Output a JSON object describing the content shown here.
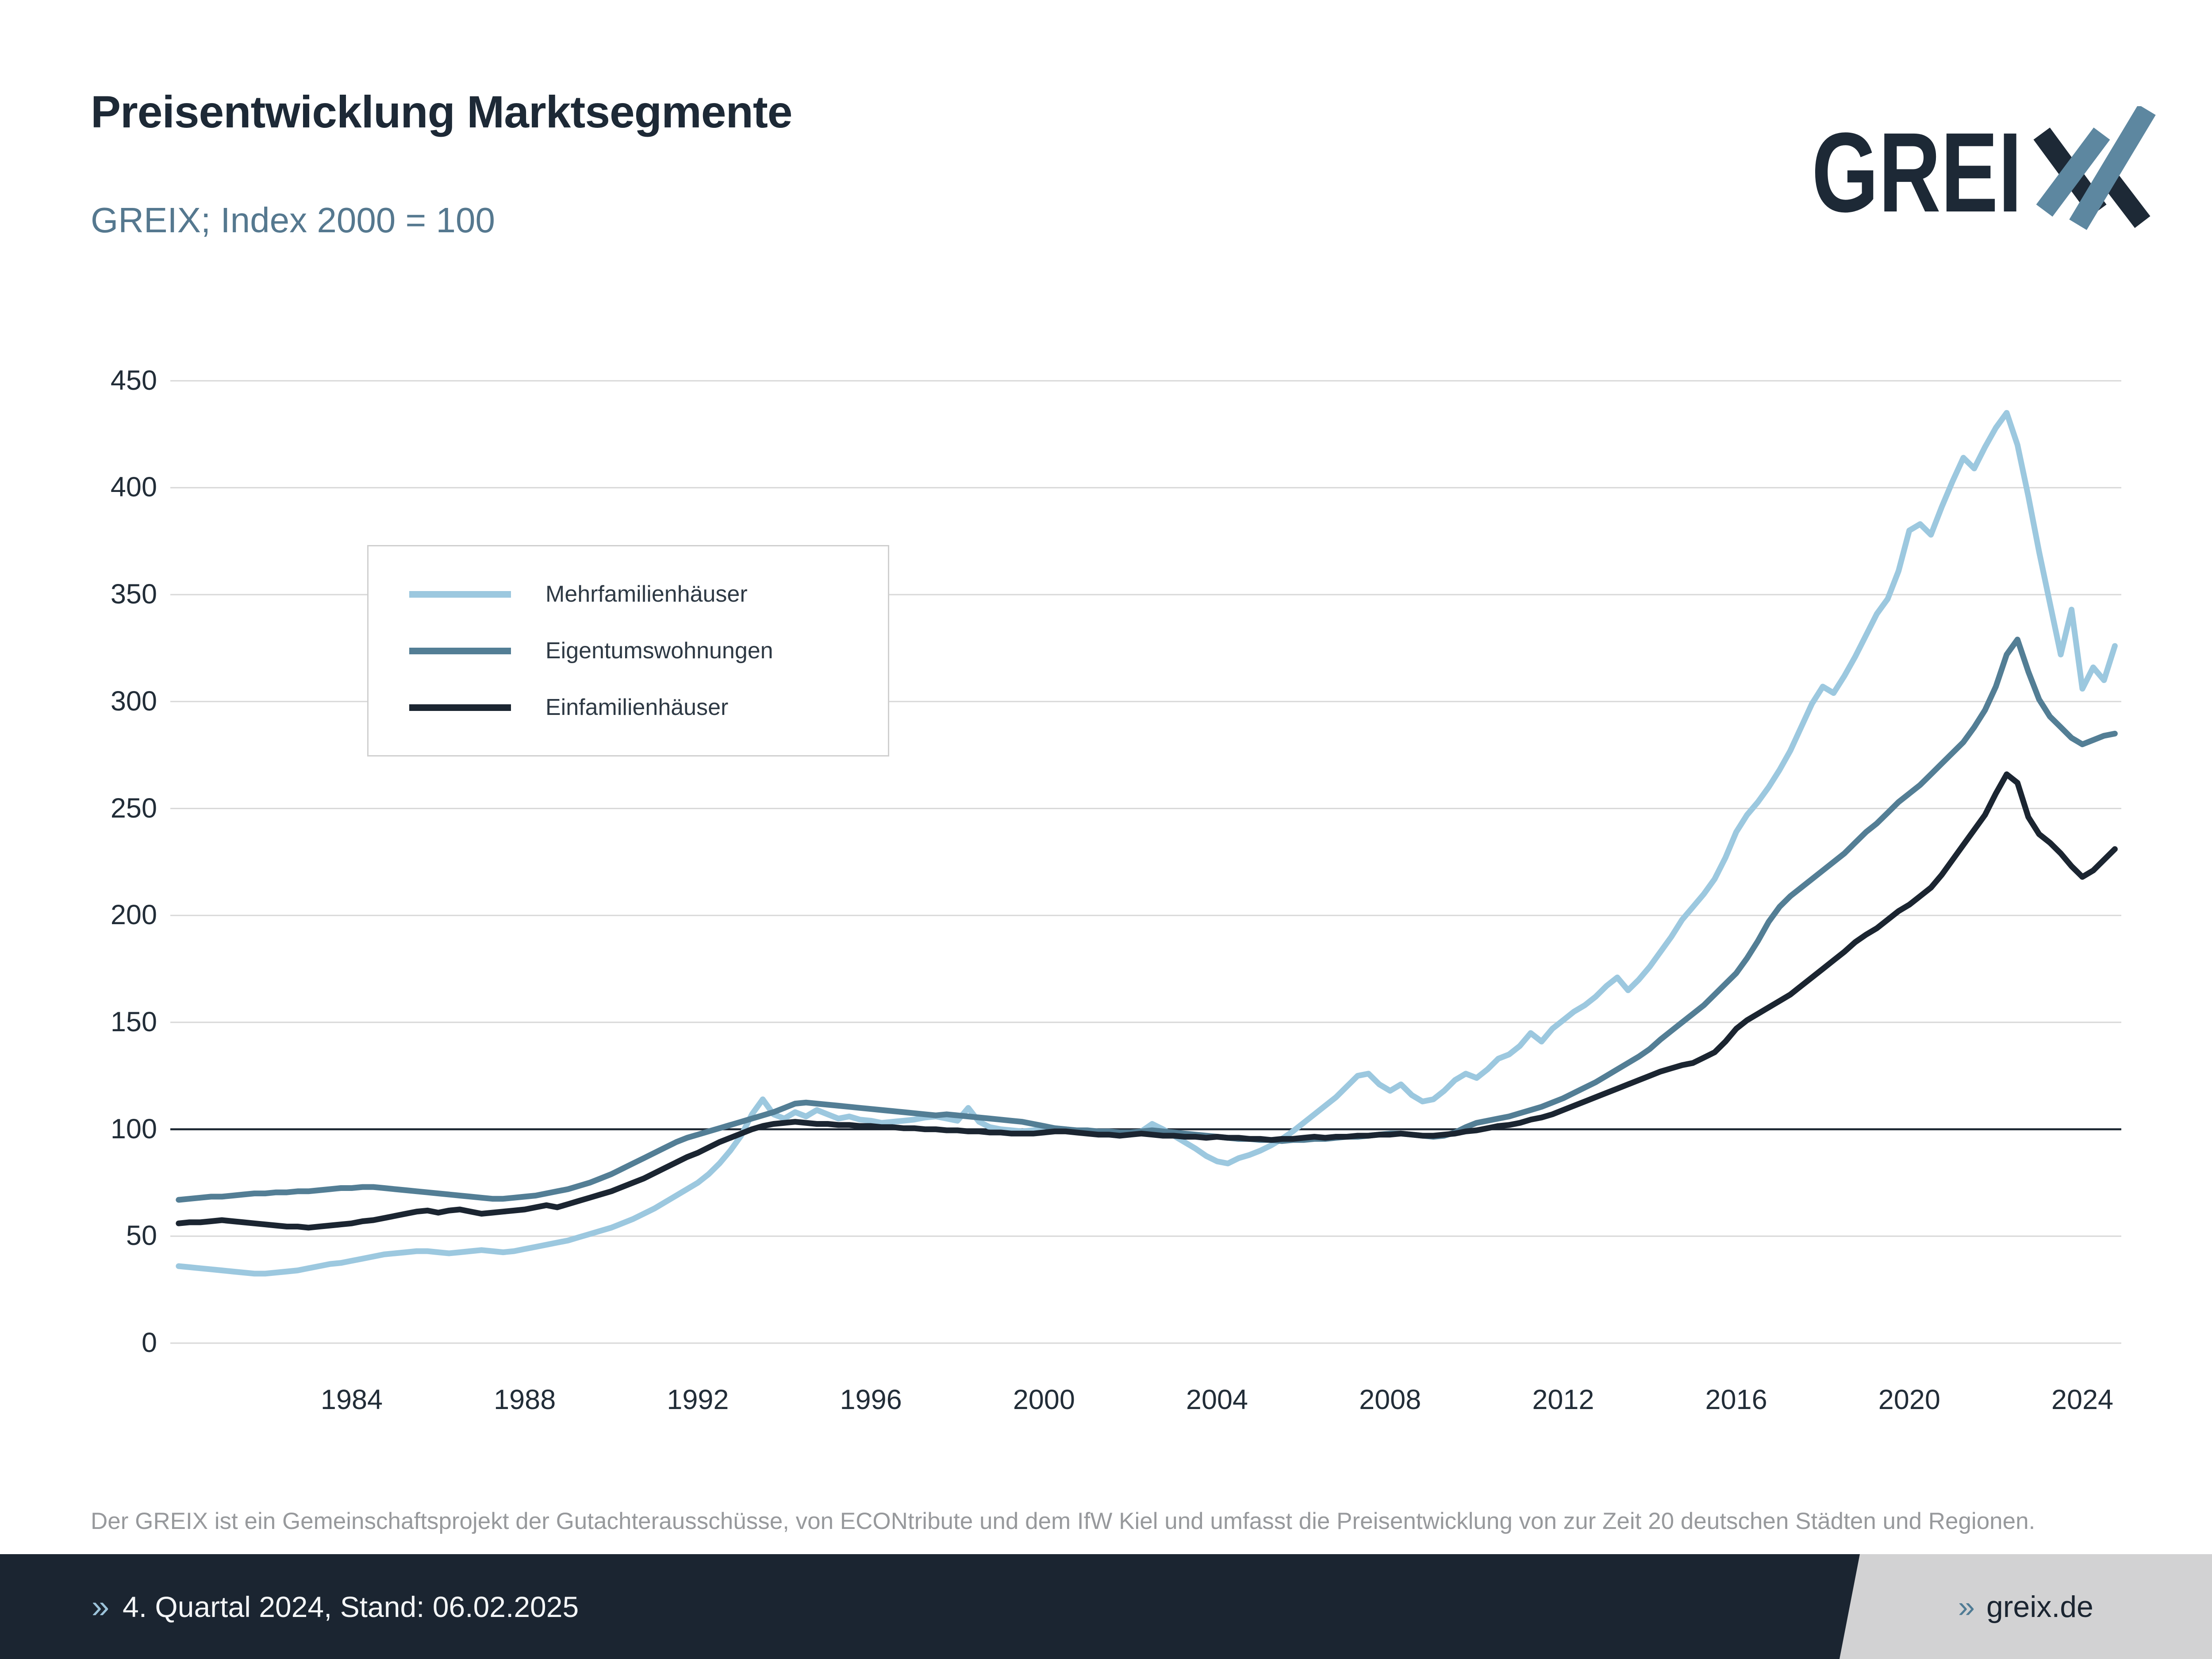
{
  "header": {
    "title": "Preisentwicklung Marktsegmente",
    "subtitle": "GREIX; Index 2000 = 100"
  },
  "logo": {
    "text": "GREIX",
    "text_without_x": "GREI",
    "x_letter": "X",
    "dark_color": "#1d2936",
    "accent_color": "#5d87a0"
  },
  "footnote": "Der GREIX ist ein Gemeinschaftsprojekt der Gutachterausschüsse, von ECONtribute und dem IfW Kiel und umfasst die Preisentwicklung von zur Zeit 20 deutschen Städten und Regionen.",
  "footer_bar": {
    "background": "#1b2531",
    "left_chevron": "»",
    "left_text": "4. Quartal 2024, Stand: 06.02.2025",
    "right_chevron": "»",
    "right_text": "greix.de",
    "right_panel_color": "#d2d2d3"
  },
  "chart_data": {
    "type": "line",
    "title": "Preisentwicklung Marktsegmente",
    "subtitle": "GREIX; Index 2000 = 100",
    "x_start": 1980.0,
    "x_step": 0.25,
    "x_tick_years": [
      1984,
      1988,
      1992,
      1996,
      2000,
      2004,
      2008,
      2012,
      2016,
      2020,
      2024
    ],
    "ylim": [
      0,
      450
    ],
    "ytick_step": 50,
    "baseline_value": 100,
    "grid_on": true,
    "grid_color": "#d8d8d8",
    "baseline_color": "#1b2531",
    "axis_label_color": "#222d38",
    "legend_position": "upper-left-inside",
    "series": [
      {
        "name": "Mehrfamilienhäuser",
        "color": "#9cc8df",
        "values": [
          36,
          35.5,
          35,
          34.5,
          34,
          33.5,
          33,
          32.5,
          32.5,
          33,
          33.5,
          34,
          35,
          36,
          37,
          37.5,
          38.5,
          39.5,
          40.5,
          41.5,
          42,
          42.5,
          43,
          43,
          42.5,
          42,
          42.5,
          43,
          43.5,
          43,
          42.5,
          43,
          44,
          45,
          46,
          47,
          48,
          49.5,
          51,
          52.5,
          54,
          56,
          58,
          60.5,
          63,
          66,
          69,
          72,
          75,
          79,
          84,
          90,
          97,
          107,
          114,
          107,
          105,
          108,
          106,
          109,
          107,
          105,
          106,
          104.5,
          104,
          103,
          103.5,
          104,
          104.5,
          105.5,
          106,
          105,
          104,
          110,
          103.5,
          101,
          100,
          99.5,
          99,
          99.5,
          100,
          100.5,
          100,
          99.5,
          99,
          98,
          97.5,
          97,
          97.5,
          99,
          102.5,
          100,
          97,
          94,
          91,
          87.5,
          85,
          84,
          86.5,
          88,
          90,
          92.5,
          95.5,
          99,
          103,
          107,
          111,
          115,
          120,
          125,
          126,
          121,
          118,
          121,
          116,
          113,
          114,
          118,
          123,
          126,
          124,
          128,
          133,
          135,
          139,
          145,
          141,
          147,
          151,
          155,
          158,
          162,
          167,
          171,
          165,
          170,
          176,
          183,
          190,
          198,
          204,
          210,
          217,
          227,
          239,
          247,
          253,
          260,
          268,
          277,
          288,
          299,
          307,
          304,
          312,
          321,
          331,
          341,
          348,
          361,
          380,
          383,
          378,
          391,
          403,
          414,
          409,
          419,
          428,
          435,
          420,
          396,
          370,
          346,
          322,
          343,
          306,
          316,
          310,
          326
        ]
      },
      {
        "name": "Eigentumswohnungen",
        "color": "#537e95",
        "values": [
          67,
          67.5,
          68,
          68.5,
          68.5,
          69,
          69.5,
          70,
          70,
          70.5,
          70.5,
          71,
          71,
          71.5,
          72,
          72.5,
          72.5,
          73,
          73,
          72.5,
          72,
          71.5,
          71,
          70.5,
          70,
          69.5,
          69,
          68.5,
          68,
          67.5,
          67.5,
          68,
          68.5,
          69,
          70,
          71,
          72,
          73.5,
          75,
          77,
          79,
          81.5,
          84,
          86.5,
          89,
          91.5,
          94,
          96,
          97.5,
          99,
          100.5,
          102,
          103.5,
          105,
          106.5,
          108,
          110,
          112,
          112.5,
          112,
          111.5,
          111,
          110.5,
          110,
          109.5,
          109,
          108.5,
          108,
          107.5,
          107,
          106.5,
          107,
          106.5,
          106,
          105.5,
          105,
          104.5,
          104,
          103.5,
          102.5,
          101.5,
          100.5,
          100,
          99.5,
          99.5,
          99,
          99,
          98.5,
          98.5,
          99,
          99.5,
          99,
          98.5,
          98,
          97.5,
          97,
          96.5,
          96,
          95.5,
          95.5,
          95,
          95,
          94.5,
          95,
          95,
          95.5,
          95.5,
          96,
          96.5,
          96.5,
          97,
          97.5,
          98,
          98,
          97.5,
          97,
          96.5,
          97,
          98.5,
          101,
          103,
          104,
          105,
          106,
          107.5,
          109,
          110.5,
          112.5,
          114.5,
          117,
          119.5,
          122,
          125,
          128,
          131,
          134,
          137.5,
          142,
          146,
          150,
          154,
          158,
          163,
          168,
          173,
          180,
          188,
          197,
          204,
          209,
          213,
          217,
          221,
          225,
          229,
          234,
          239,
          243,
          248,
          253,
          257,
          261,
          266,
          271,
          276,
          281,
          288,
          296,
          307,
          322,
          329,
          314,
          301,
          293,
          288,
          283,
          280,
          282,
          284,
          285
        ]
      },
      {
        "name": "Einfamilienhäuser",
        "color": "#1b2531",
        "values": [
          56,
          56.5,
          56.5,
          57,
          57.5,
          57,
          56.5,
          56,
          55.5,
          55,
          54.5,
          54.5,
          54,
          54.5,
          55,
          55.5,
          56,
          57,
          57.5,
          58.5,
          59.5,
          60.5,
          61.5,
          62,
          61,
          62,
          62.5,
          61.5,
          60.5,
          61,
          61.5,
          62,
          62.5,
          63.5,
          64.5,
          63.5,
          65,
          66.5,
          68,
          69.5,
          71,
          73,
          75,
          77,
          79.5,
          82,
          84.5,
          87,
          89,
          91.5,
          94,
          96,
          98,
          100,
          101.5,
          102.5,
          103,
          103.5,
          103,
          102.5,
          102.5,
          102,
          102,
          101.5,
          101.5,
          101,
          101,
          100.5,
          100.5,
          100,
          100,
          99.5,
          99.5,
          99,
          99,
          98.5,
          98.5,
          98,
          98,
          98,
          98.5,
          99,
          99,
          98.5,
          98,
          97.5,
          97.5,
          97,
          97.5,
          98,
          97.5,
          97,
          97,
          96.5,
          96.5,
          96,
          96.5,
          96,
          96,
          95.5,
          95.5,
          95,
          95.5,
          95.5,
          96,
          96.5,
          96,
          96.5,
          96.5,
          97,
          97,
          97.5,
          97.5,
          98,
          97.5,
          97,
          97,
          97.5,
          98,
          99,
          99.5,
          100.5,
          101.5,
          102,
          103,
          104.5,
          105.5,
          107,
          109,
          111,
          113,
          115,
          117,
          119,
          121,
          123,
          125,
          127,
          128.5,
          130,
          131,
          133.5,
          136,
          141,
          147,
          151,
          154,
          157,
          160,
          163,
          167,
          171,
          175,
          179,
          183,
          187.5,
          191,
          194,
          198,
          202,
          205,
          209,
          213,
          219,
          226,
          233,
          240,
          247,
          257,
          266,
          262,
          246,
          238,
          234,
          229,
          223,
          218,
          221,
          226,
          231
        ]
      }
    ]
  }
}
